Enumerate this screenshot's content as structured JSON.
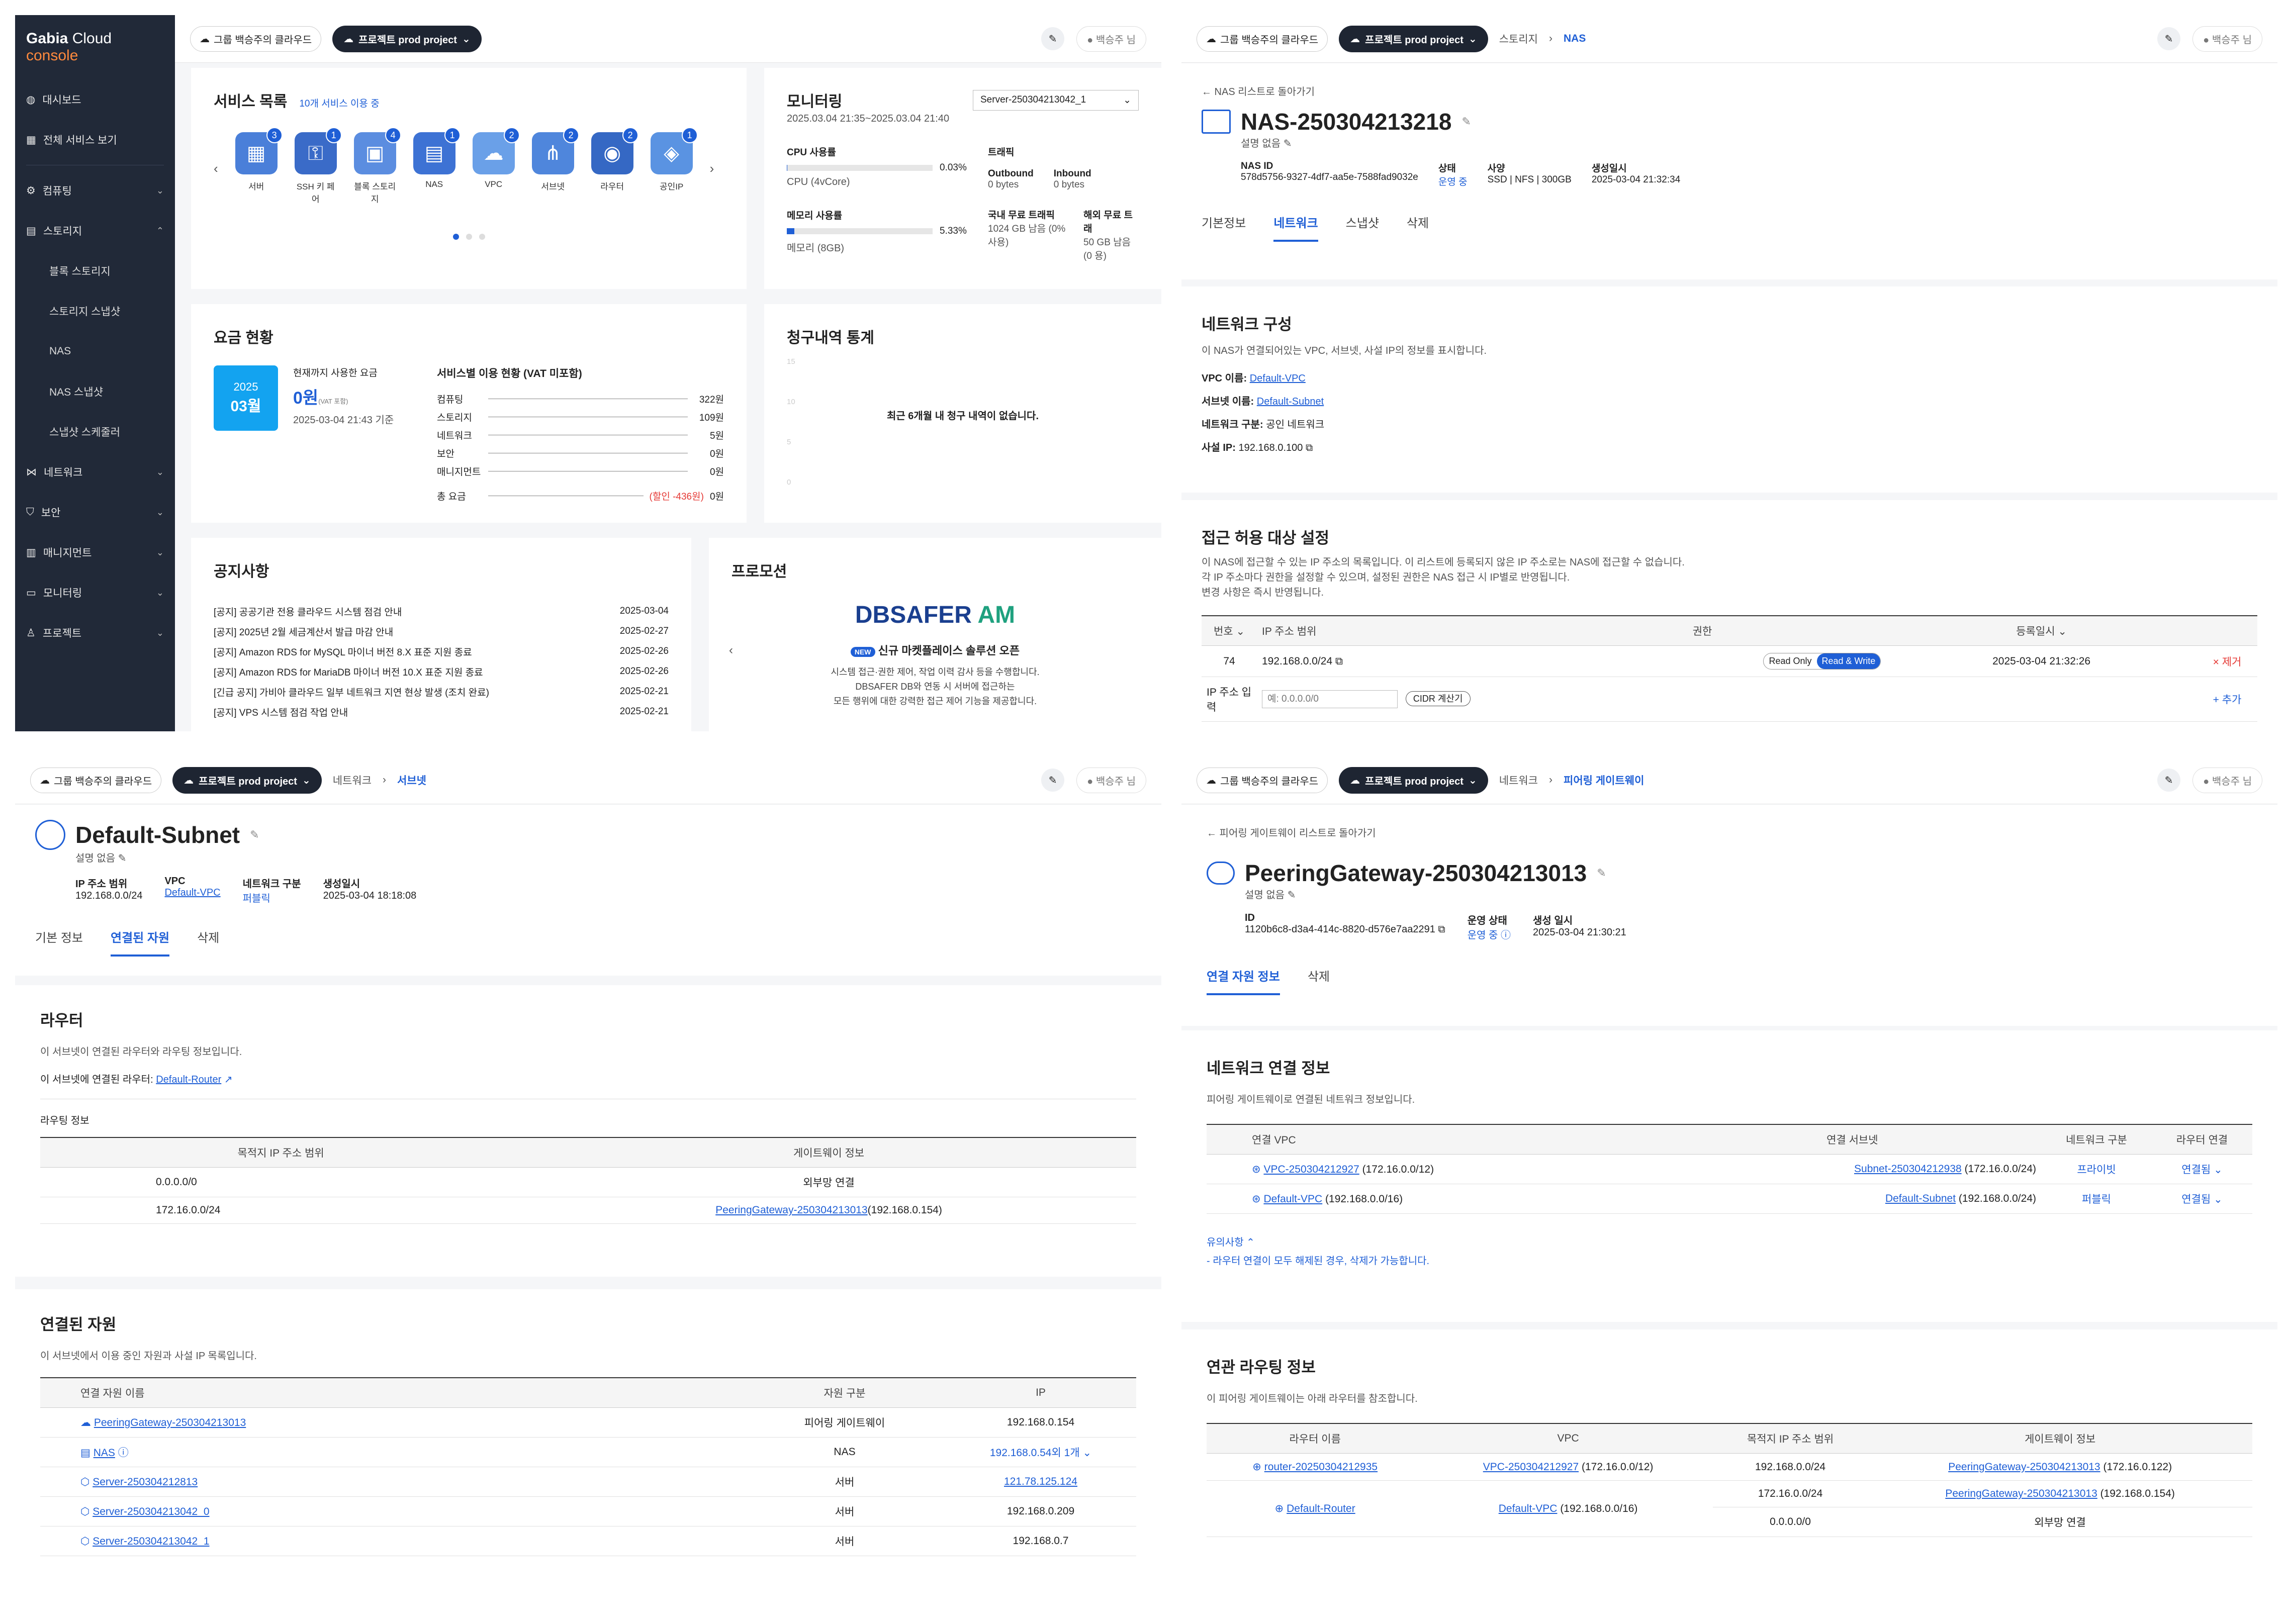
{
  "dashboard": {
    "brand": "Gabia",
    "brand_suffix": "Cloud",
    "brand_console": "console",
    "group_chip": "그룹 백승주의 클라우드",
    "project_chip": "프로젝트 prod project",
    "user": "백승주 님",
    "sidebar": [
      {
        "label": "대시보드"
      },
      {
        "label": "전체 서비스 보기"
      },
      {
        "label": "컴퓨팅"
      },
      {
        "label": "스토리지"
      },
      {
        "label": "블록 스토리지"
      },
      {
        "label": "스토리지 스냅샷"
      },
      {
        "label": "NAS"
      },
      {
        "label": "NAS 스냅샷"
      },
      {
        "label": "스냅샷 스케줄러"
      },
      {
        "label": "네트워크"
      },
      {
        "label": "보안"
      },
      {
        "label": "매니지먼트"
      },
      {
        "label": "모니터링"
      },
      {
        "label": "프로젝트"
      }
    ],
    "service_list": {
      "title": "서비스 목록",
      "count": "10개 서비스 이용 중",
      "items": [
        {
          "label": "서버",
          "count": "3"
        },
        {
          "label": "SSH 키 페어",
          "count": "1"
        },
        {
          "label": "블록 스토리지",
          "count": "4"
        },
        {
          "label": "NAS",
          "count": "1"
        },
        {
          "label": "VPC",
          "count": "2"
        },
        {
          "label": "서브넷",
          "count": "2"
        },
        {
          "label": "라우터",
          "count": "2"
        },
        {
          "label": "공인IP",
          "count": "1"
        }
      ]
    },
    "monitoring": {
      "title": "모니터링",
      "server": "Server-250304213042_1",
      "period": "2025.03.04 21:35~2025.03.04 21:40",
      "cpu_label": "CPU 사용률",
      "cpu_value": "0.03%",
      "cpu_fraction": 0.0003,
      "cpu_spec": "CPU (4vCore)",
      "mem_label": "메모리 사용률",
      "mem_value": "5.33%",
      "mem_fraction": 0.0533,
      "mem_spec": "메모리 (8GB)",
      "traffic_label": "트래픽",
      "outbound_label": "Outbound",
      "outbound_value": "0 bytes",
      "inbound_label": "Inbound",
      "inbound_value": "0 bytes",
      "domestic_label": "국내 무료 트래픽",
      "domestic_value": "1024 GB 남음 (0% 사용)",
      "overseas_label": "해외 무료 트래",
      "overseas_value": "50 GB 남음 (0 용)"
    },
    "billing": {
      "title": "요금 현황",
      "year": "2025",
      "month": "03월",
      "used_label": "현재까지 사용한 요금",
      "amount": "0원",
      "vat": "(VAT 포함)",
      "asof": "2025-03-04 21:43 기준",
      "breakdown_title": "서비스별 이용 현황 (VAT 미포함)",
      "rows": [
        {
          "name": "컴퓨팅",
          "value": "322원"
        },
        {
          "name": "스토리지",
          "value": "109원"
        },
        {
          "name": "네트워크",
          "value": "5원"
        },
        {
          "name": "보안",
          "value": "0원"
        },
        {
          "name": "매니지먼트",
          "value": "0원"
        }
      ],
      "total_label": "총 요금",
      "total_discount": "(할인 -436원)",
      "total_value": "0원"
    },
    "billing_stats": {
      "title": "청구내역 통계",
      "empty": "최근 6개월 내 청구 내역이 없습니다.",
      "axis": [
        "15",
        "10",
        "5",
        "0"
      ]
    },
    "notices": {
      "title": "공지사항",
      "items": [
        {
          "text": "[공지] 공공기관 전용 클라우드 시스템 점검 안내",
          "date": "2025-03-04"
        },
        {
          "text": "[공지] 2025년 2월 세금계산서 발급 마감 안내",
          "date": "2025-02-27"
        },
        {
          "text": "[공지] Amazon RDS for MySQL 마이너 버전 8.X 표준 지원 종료",
          "date": "2025-02-26"
        },
        {
          "text": "[공지] Amazon RDS for MariaDB 마이너 버전 10.X 표준 지원 종료",
          "date": "2025-02-26"
        },
        {
          "text": "[긴급 공지] 가비아 클라우드 일부 네트워크 지연 현상 발생 (조치 완료)",
          "date": "2025-02-21"
        },
        {
          "text": "[공지] VPS 시스템 점검 작업 안내",
          "date": "2025-02-21"
        }
      ]
    },
    "promotion": {
      "title": "프로모션",
      "logo_main": "DBSAFER",
      "logo_sub": "AM",
      "new_badge": "NEW",
      "headline": "신규 마켓플레이스 솔루션 오픈",
      "desc1": "시스템 접근·권한 제어, 작업 이력 감사 등을 수행합니다.",
      "desc2": "DBSAFER DB와 연동 시 서버에 접근하는",
      "desc3": "모든 행위에 대한 강력한 접근 제어 기능을 제공합니다."
    }
  },
  "nas": {
    "group_chip": "그룹 백승주의 클라우드",
    "project_chip": "프로젝트 prod project",
    "crumbs": [
      "스토리지",
      "NAS"
    ],
    "user": "백승주 님",
    "back": "← NAS 리스트로 돌아가기",
    "title": "NAS-250304213218",
    "desc": "설명 없음",
    "meta": [
      {
        "label": "NAS ID",
        "value": "578d5756-9327-4df7-aa5e-7588fad9032e"
      },
      {
        "label": "상태",
        "value": "운영 중"
      },
      {
        "label": "사양",
        "value": "SSD | NFS | 300GB"
      },
      {
        "label": "생성일시",
        "value": "2025-03-04 21:32:34"
      }
    ],
    "tabs": [
      "기본정보",
      "네트워크",
      "스냅샷",
      "삭제"
    ],
    "network": {
      "title": "네트워크 구성",
      "desc": "이 NAS가 연결되어있는 VPC, 서브넷, 사설 IP의 정보를 표시합니다.",
      "vpc_label": "VPC 이름:",
      "vpc_value": "Default-VPC",
      "subnet_label": "서브넷 이름:",
      "subnet_value": "Default-Subnet",
      "type_label": "네트워크 구분:",
      "type_value": "공인 네트워크",
      "ip_label": "사설 IP:",
      "ip_value": "192.168.0.100"
    },
    "access": {
      "title": "접근 허용 대상 설정",
      "desc1": "이 NAS에 접근할 수 있는 IP 주소의 목록입니다. 이 리스트에 등록되지 않은 IP 주소로는 NAS에 접근할 수 없습니다.",
      "desc2": "각 IP 주소마다 권한을 설정할 수 있으며, 설정된 권한은 NAS 접근 시 IP별로 반영됩니다.",
      "desc3": "변경 사항은 즉시 반영됩니다.",
      "headers": [
        "번호",
        "IP 주소 범위",
        "권한",
        "등록일시"
      ],
      "row": {
        "no": "74",
        "ip": "192.168.0.0/24",
        "ro": "Read Only",
        "rw": "Read & Write",
        "date": "2025-03-04 21:32:26",
        "remove": "× 제거"
      },
      "input_label": "IP 주소 입력",
      "input_placeholder": "예: 0.0.0.0/0",
      "cidr_btn": "CIDR 계산기",
      "add": "+ 추가"
    }
  },
  "subnet": {
    "group_chip": "그룹 백승주의 클라우드",
    "project_chip": "프로젝트 prod project",
    "crumbs": [
      "네트워크",
      "서브넷"
    ],
    "user": "백승주 님",
    "title": "Default-Subnet",
    "desc": "설명 없음",
    "meta": [
      {
        "label": "IP 주소 범위",
        "value": "192.168.0.0/24"
      },
      {
        "label": "VPC",
        "value": "Default-VPC"
      },
      {
        "label": "네트워크 구분",
        "value": "퍼블릭"
      },
      {
        "label": "생성일시",
        "value": "2025-03-04 18:18:08"
      }
    ],
    "tabs": [
      "기본 정보",
      "연결된 자원",
      "삭제"
    ],
    "router": {
      "title": "라우터",
      "desc": "이 서브넷이 연결된 라우터와 라우팅 정보입니다.",
      "linked_label": "이 서브넷에 연결된 라우터:",
      "linked_value": "Default-Router",
      "routing_label": "라우팅 정보",
      "headers": [
        "목적지 IP 주소 범위",
        "게이트웨이 정보"
      ],
      "rows": [
        {
          "dest": "0.0.0.0/0",
          "gw": "외부망 연결",
          "gw_ip": ""
        },
        {
          "dest": "172.16.0.0/24",
          "gw": "PeeringGateway-250304213013",
          "gw_ip": "(192.168.0.154)"
        }
      ]
    },
    "resources": {
      "title": "연결된 자원",
      "desc": "이 서브넷에서 이용 중인 자원과 사설 IP 목록입니다.",
      "headers": [
        "연결 자원 이름",
        "자원 구분",
        "IP"
      ],
      "rows": [
        {
          "name": "PeeringGateway-250304213013",
          "type": "피어링 게이트웨이",
          "ip": "192.168.0.154"
        },
        {
          "name": "NAS",
          "type": "NAS",
          "ip": "192.168.0.54외 1개"
        },
        {
          "name": "Server-250304212813",
          "type": "서버",
          "ip": "121.78.125.124"
        },
        {
          "name": "Server-250304213042_0",
          "type": "서버",
          "ip": "192.168.0.209"
        },
        {
          "name": "Server-250304213042_1",
          "type": "서버",
          "ip": "192.168.0.7"
        }
      ]
    }
  },
  "peering": {
    "group_chip": "그룹 백승주의 클라우드",
    "project_chip": "프로젝트 prod project",
    "crumbs": [
      "네트워크",
      "피어링 게이트웨이"
    ],
    "user": "백승주 님",
    "back": "← 피어링 게이트웨이 리스트로 돌아가기",
    "title": "PeeringGateway-250304213013",
    "desc": "설명 없음",
    "meta": [
      {
        "label": "ID",
        "value": "1120b6c8-d3a4-414c-8820-d576e7aa2291"
      },
      {
        "label": "운영 상태",
        "value": "운영 중"
      },
      {
        "label": "생성 일시",
        "value": "2025-03-04 21:30:21"
      }
    ],
    "tabs": [
      "연결 자원 정보",
      "삭제"
    ],
    "network": {
      "title": "네트워크 연결 정보",
      "desc": "피어링 게이트웨이로 연결된 네트워크 정보입니다.",
      "headers": [
        "연결 VPC",
        "연결 서브넷",
        "네트워크 구분",
        "라우터 연결"
      ],
      "rows": [
        {
          "vpc": "VPC-250304212927",
          "vpc_cidr": "(172.16.0.0/12)",
          "subnet": "Subnet-250304212938",
          "subnet_cidr": "(172.16.0.0/24)",
          "kind": "프라이빗",
          "router": "연결됨"
        },
        {
          "vpc": "Default-VPC",
          "vpc_cidr": "(192.168.0.0/16)",
          "subnet": "Default-Subnet",
          "subnet_cidr": "(192.168.0.0/24)",
          "kind": "퍼블릭",
          "router": "연결됨"
        }
      ],
      "note_title": "유의사항",
      "note": "- 라우터 연결이 모두 해제된 경우, 삭제가 가능합니다."
    },
    "routing": {
      "title": "연관 라우팅 정보",
      "desc": "이 피어링 게이트웨이는 아래 라우터를 참조합니다.",
      "headers": [
        "라우터 이름",
        "VPC",
        "목적지 IP 주소 범위",
        "게이트웨이 정보"
      ],
      "rows": [
        {
          "router": "router-20250304212935",
          "vpc": "VPC-250304212927",
          "vpc_cidr": "(172.16.0.0/12)",
          "dest": "192.168.0.0/24",
          "gw": "PeeringGateway-250304213013",
          "gw_ip": "(172.16.0.122)"
        },
        {
          "router": "Default-Router",
          "vpc": "Default-VPC",
          "vpc_cidr": "(192.168.0.0/16)",
          "dest": "172.16.0.0/24",
          "gw": "PeeringGateway-250304213013",
          "gw_ip": "(192.168.0.154)"
        },
        {
          "router": "",
          "vpc": "",
          "vpc_cidr": "",
          "dest": "0.0.0.0/0",
          "gw": "외부망 연결",
          "gw_ip": ""
        }
      ]
    }
  }
}
